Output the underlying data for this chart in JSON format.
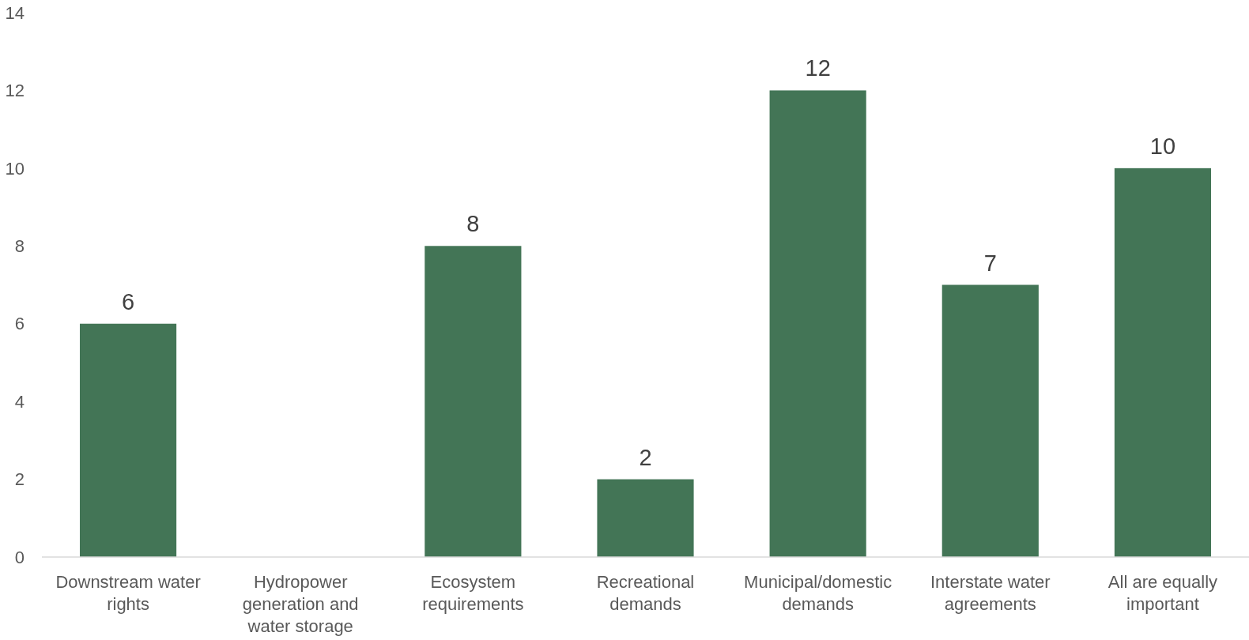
{
  "chart_data": {
    "type": "bar",
    "categories": [
      "Downstream water rights",
      "Hydropower generation and water storage",
      "Ecosystem requirements",
      "Recreational demands",
      "Municipal/domestic demands",
      "Interstate water agreements",
      "All are equally important"
    ],
    "values": [
      6,
      0,
      8,
      2,
      12,
      7,
      10
    ],
    "value_labels": [
      "6",
      null,
      "8",
      "2",
      "12",
      "7",
      "10"
    ],
    "color": "#437556",
    "ylim": [
      0,
      14
    ],
    "yticks": [
      0,
      2,
      4,
      6,
      8,
      10,
      12,
      14
    ],
    "grid": false
  }
}
